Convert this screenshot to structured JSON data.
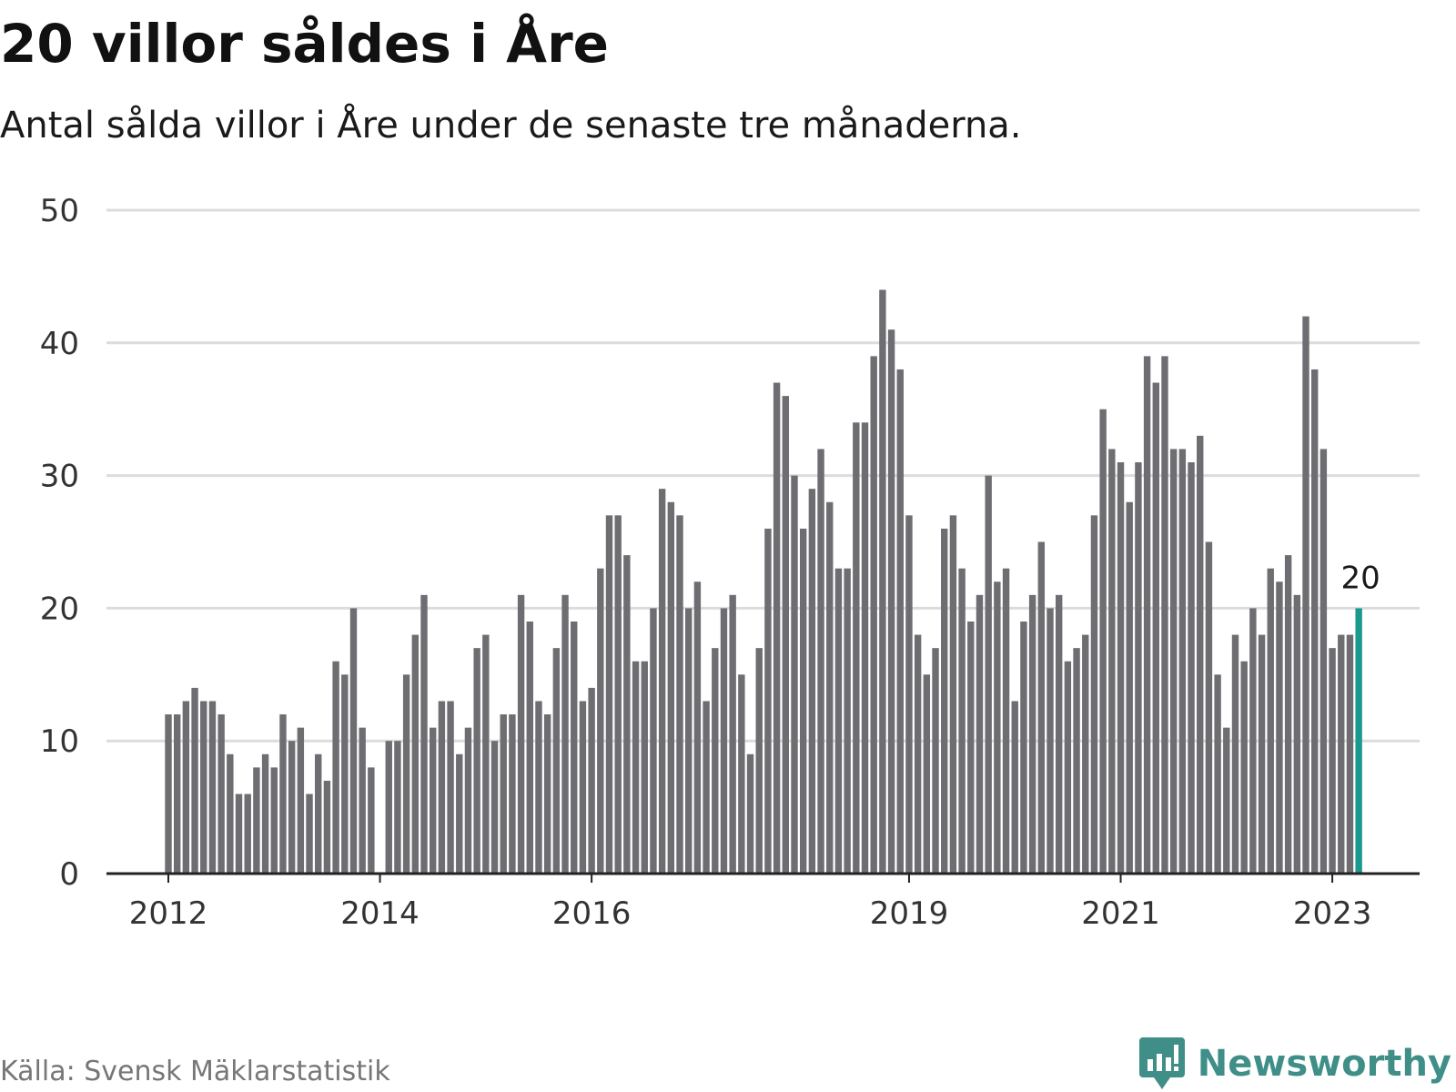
{
  "title": "20 villor såldes i Åre",
  "subtitle": "Antal sålda villor i Åre under de senaste tre månaderna.",
  "source": "Källa: Svensk Mäklarstatistik",
  "brand": {
    "name": "Newsworthy",
    "icon": "newsworthy-logo-icon",
    "color": "#3f8f88"
  },
  "colors": {
    "bar": "#6e6d72",
    "highlight": "#1a9a8e",
    "grid": "#dcdcdc",
    "axis": "#222222"
  },
  "chart_data": {
    "type": "bar",
    "title": "20 villor såldes i Åre",
    "subtitle": "Antal sålda villor i Åre under de senaste tre månaderna.",
    "xlabel": "",
    "ylabel": "",
    "ylim": [
      0,
      50
    ],
    "yticks": [
      0,
      10,
      20,
      30,
      40,
      50
    ],
    "grid": true,
    "xticks": [
      {
        "label": "2012",
        "index": 0
      },
      {
        "label": "2014",
        "index": 24
      },
      {
        "label": "2016",
        "index": 48
      },
      {
        "label": "2019",
        "index": 84
      },
      {
        "label": "2021",
        "index": 108
      },
      {
        "label": "2023",
        "index": 132
      }
    ],
    "values": [
      12,
      12,
      13,
      14,
      13,
      13,
      12,
      9,
      6,
      6,
      8,
      9,
      8,
      12,
      10,
      11,
      6,
      9,
      7,
      16,
      15,
      20,
      11,
      8,
      0,
      10,
      10,
      15,
      18,
      21,
      11,
      13,
      13,
      9,
      11,
      17,
      18,
      10,
      12,
      12,
      21,
      19,
      13,
      12,
      17,
      21,
      19,
      13,
      14,
      23,
      27,
      27,
      24,
      16,
      16,
      20,
      29,
      28,
      27,
      20,
      22,
      13,
      17,
      20,
      21,
      15,
      9,
      17,
      26,
      37,
      36,
      30,
      26,
      29,
      32,
      28,
      23,
      23,
      34,
      34,
      39,
      44,
      41,
      38,
      27,
      18,
      15,
      17,
      26,
      27,
      23,
      19,
      21,
      30,
      22,
      23,
      13,
      19,
      21,
      25,
      20,
      21,
      16,
      17,
      18,
      27,
      35,
      32,
      31,
      28,
      31,
      39,
      37,
      39,
      32,
      32,
      31,
      33,
      25,
      15,
      11,
      18,
      16,
      20,
      18,
      23,
      22,
      24,
      21,
      42,
      38,
      32,
      17,
      18,
      18,
      20
    ],
    "highlight_index": 135,
    "highlight_label": "20"
  }
}
